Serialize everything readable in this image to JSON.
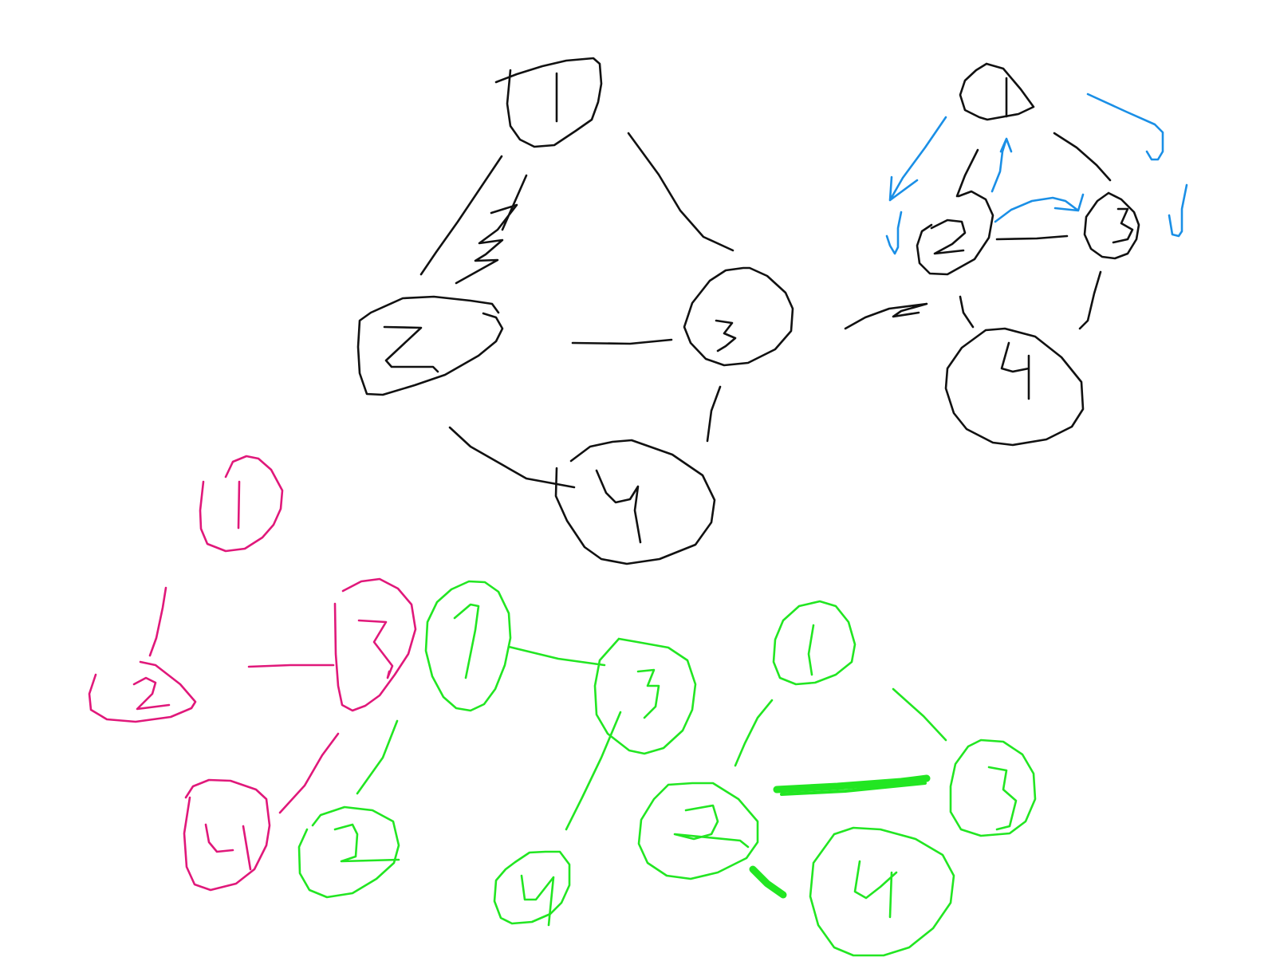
{
  "colors": {
    "ink_black": "#111111",
    "ink_blue": "#1a8fe6",
    "ink_magenta": "#e0187a",
    "ink_green": "#22e622",
    "background": "#ffffff"
  },
  "diagram": {
    "main_graph": {
      "nodes": [
        "1",
        "2",
        "3",
        "4"
      ],
      "edges": [
        [
          "1",
          "2"
        ],
        [
          "1",
          "3"
        ],
        [
          "2",
          "3"
        ],
        [
          "2",
          "4"
        ],
        [
          "3",
          "4"
        ]
      ],
      "edge_weights": [
        {
          "edge": [
            "1",
            "2"
          ],
          "label": "3"
        }
      ]
    },
    "arrow_to_directed": true,
    "directed_graph": {
      "nodes": [
        "1",
        "2",
        "3",
        "4"
      ],
      "edges": [
        [
          "1",
          "2"
        ],
        [
          "1",
          "3"
        ],
        [
          "2",
          "3"
        ],
        [
          "2",
          "4"
        ],
        [
          "3",
          "4"
        ]
      ]
    },
    "magenta_tree": {
      "nodes": [
        "1",
        "2",
        "3",
        "4"
      ],
      "edges": [
        [
          "1",
          "2"
        ],
        [
          "2",
          "3"
        ],
        [
          "3",
          "4"
        ]
      ]
    },
    "green_tree_a": {
      "nodes": [
        "1",
        "3",
        "2",
        "4"
      ],
      "edges": [
        [
          "1",
          "3"
        ],
        [
          "1",
          "2"
        ],
        [
          "3",
          "4"
        ]
      ]
    },
    "green_tree_b": {
      "nodes": [
        "1",
        "2",
        "3",
        "4"
      ],
      "edges": [
        [
          "1",
          "2"
        ],
        [
          "1",
          "3"
        ],
        [
          "2",
          "3"
        ],
        [
          "2",
          "4"
        ]
      ]
    }
  }
}
